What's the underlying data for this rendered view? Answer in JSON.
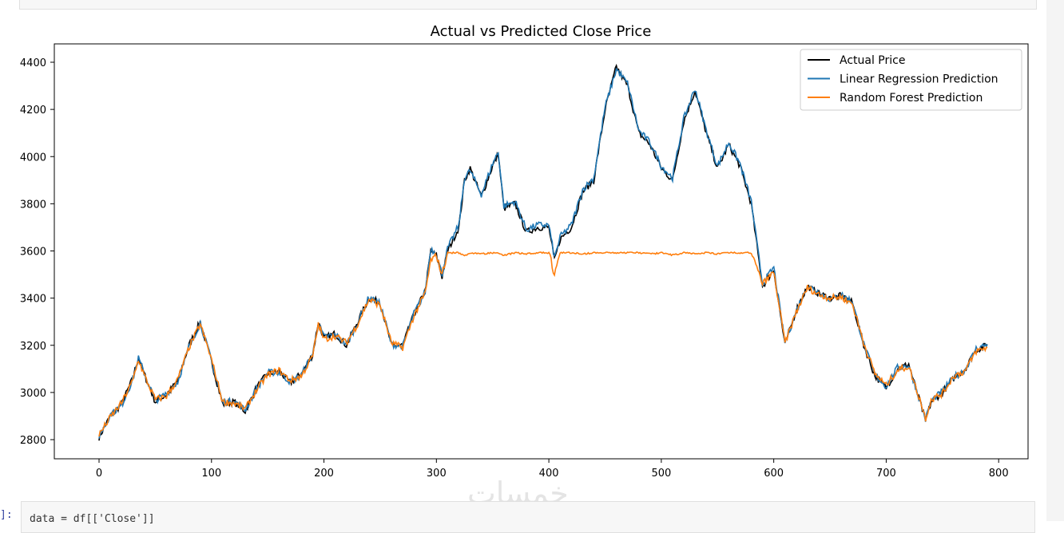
{
  "watermark": "خمسات",
  "next_cell": {
    "prompt": "]:",
    "code": "data = df[['Close']]"
  },
  "chart_data": {
    "type": "line",
    "title": "Actual vs Predicted Close Price",
    "xlabel": "",
    "ylabel": "",
    "xlim": [
      -40,
      830
    ],
    "ylim": [
      2750,
      4430
    ],
    "xticks": [
      0,
      100,
      200,
      300,
      400,
      500,
      600,
      700,
      800
    ],
    "yticks": [
      2800,
      3000,
      3200,
      3400,
      3600,
      3800,
      4000,
      4200,
      4400
    ],
    "legend": "top-right",
    "x": [
      0,
      10,
      20,
      30,
      35,
      40,
      50,
      60,
      70,
      80,
      90,
      100,
      110,
      120,
      130,
      140,
      150,
      160,
      170,
      180,
      190,
      195,
      200,
      210,
      220,
      230,
      240,
      250,
      260,
      270,
      280,
      290,
      295,
      300,
      305,
      310,
      320,
      325,
      330,
      340,
      350,
      355,
      360,
      370,
      380,
      390,
      400,
      405,
      410,
      420,
      430,
      440,
      450,
      460,
      470,
      480,
      490,
      500,
      510,
      520,
      530,
      540,
      550,
      560,
      570,
      580,
      590,
      600,
      610,
      620,
      630,
      640,
      650,
      660,
      670,
      680,
      690,
      700,
      710,
      720,
      730,
      735,
      740,
      750,
      760,
      770,
      780,
      790
    ],
    "series": [
      {
        "name": "Actual Price",
        "color": "#000000",
        "values": [
          2810,
          2900,
          2950,
          3060,
          3150,
          3080,
          2960,
          2990,
          3050,
          3200,
          3300,
          3130,
          2950,
          2960,
          2920,
          3020,
          3080,
          3090,
          3040,
          3080,
          3160,
          3300,
          3230,
          3250,
          3200,
          3300,
          3400,
          3380,
          3200,
          3200,
          3330,
          3430,
          3600,
          3580,
          3490,
          3600,
          3700,
          3900,
          3950,
          3830,
          3960,
          4010,
          3780,
          3800,
          3680,
          3700,
          3700,
          3560,
          3650,
          3700,
          3850,
          3900,
          4200,
          4380,
          4300,
          4100,
          4050,
          3950,
          3900,
          4150,
          4280,
          4100,
          3950,
          4050,
          3960,
          3800,
          3450,
          3520,
          3200,
          3350,
          3450,
          3420,
          3400,
          3410,
          3380,
          3200,
          3070,
          3020,
          3100,
          3120,
          2960,
          2880,
          2960,
          3000,
          3060,
          3100,
          3180,
          3200
        ]
      },
      {
        "name": "Linear Regression Prediction",
        "color": "#1f77b4",
        "values": [
          2815,
          2905,
          2945,
          3055,
          3145,
          3085,
          2965,
          2995,
          3045,
          3195,
          3295,
          3135,
          2955,
          2965,
          2925,
          3015,
          3085,
          3085,
          3045,
          3075,
          3165,
          3295,
          3235,
          3245,
          3205,
          3295,
          3405,
          3375,
          3205,
          3195,
          3335,
          3425,
          3610,
          3590,
          3500,
          3610,
          3710,
          3910,
          3940,
          3840,
          3970,
          4020,
          3790,
          3810,
          3690,
          3710,
          3710,
          3570,
          3660,
          3710,
          3860,
          3910,
          4210,
          4370,
          4310,
          4110,
          4060,
          3960,
          3910,
          4160,
          4290,
          4110,
          3960,
          4060,
          3970,
          3810,
          3460,
          3530,
          3210,
          3345,
          3455,
          3425,
          3395,
          3415,
          3385,
          3205,
          3075,
          3025,
          3105,
          3115,
          2965,
          2885,
          2965,
          3005,
          3065,
          3095,
          3185,
          3205
        ]
      },
      {
        "name": "Random Forest Prediction",
        "color": "#ff7f0e",
        "values": [
          2820,
          2895,
          2955,
          3050,
          3140,
          3075,
          2970,
          2985,
          3055,
          3190,
          3290,
          3140,
          2960,
          2955,
          2930,
          3010,
          3075,
          3095,
          3050,
          3070,
          3155,
          3290,
          3225,
          3240,
          3210,
          3290,
          3395,
          3370,
          3210,
          3190,
          3325,
          3420,
          3560,
          3580,
          3500,
          3595,
          3595,
          3580,
          3595,
          3590,
          3595,
          3595,
          3585,
          3595,
          3590,
          3595,
          3595,
          3500,
          3595,
          3595,
          3590,
          3595,
          3595,
          3595,
          3595,
          3595,
          3590,
          3595,
          3585,
          3595,
          3590,
          3595,
          3590,
          3595,
          3595,
          3595,
          3460,
          3510,
          3210,
          3340,
          3445,
          3415,
          3400,
          3405,
          3375,
          3210,
          3080,
          3030,
          3095,
          3110,
          2970,
          2890,
          2970,
          2995,
          3070,
          3090,
          3175,
          3190
        ]
      }
    ]
  }
}
